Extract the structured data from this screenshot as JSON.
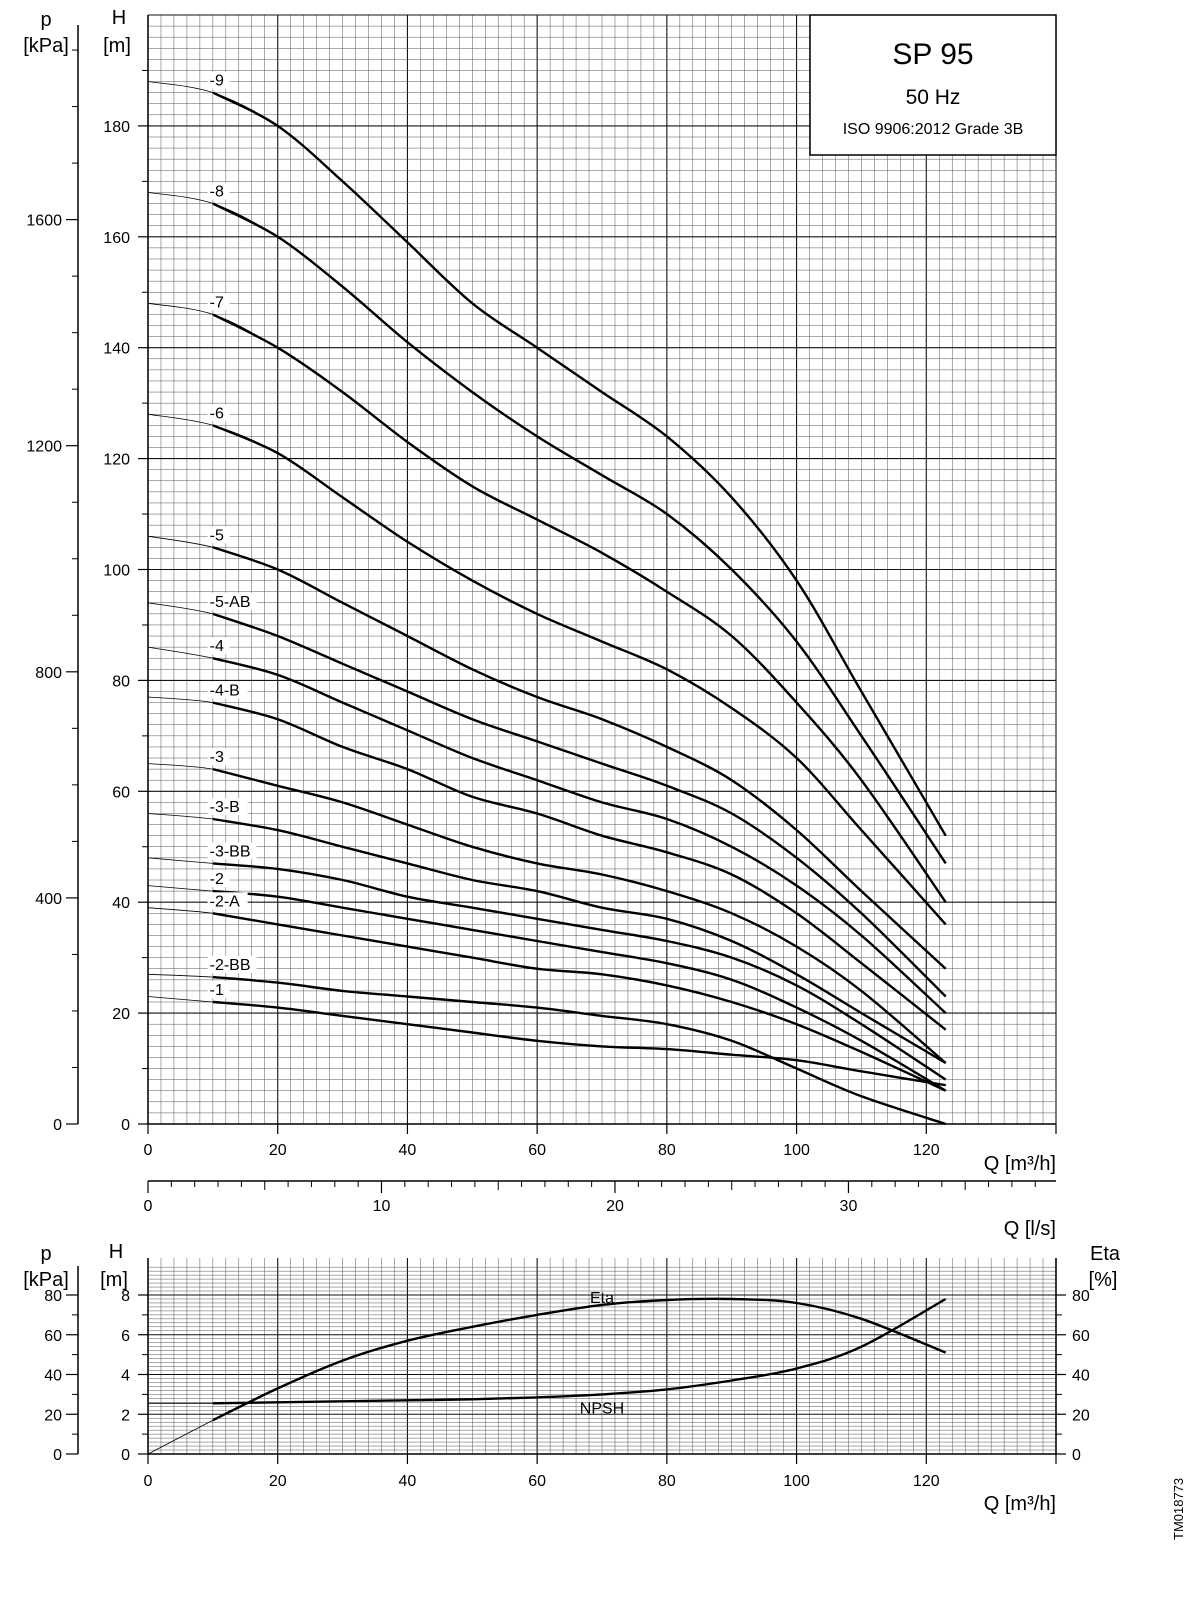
{
  "chart_data": [
    {
      "type": "line",
      "title": "SP 95",
      "subtitle": "50 Hz",
      "standard": "ISO 9906:2012 Grade 3B",
      "xlabel": "Q [m³/h]",
      "xlim": [
        0,
        140
      ],
      "x_ticks": [
        "0",
        "20",
        "40",
        "60",
        "80",
        "100",
        "120"
      ],
      "ylabel_head": "H",
      "ylabel_head_unit": "[m]",
      "ylim": [
        0,
        200
      ],
      "y_ticks": [
        "0",
        "20",
        "40",
        "60",
        "80",
        "100",
        "120",
        "140",
        "160",
        "180"
      ],
      "ylabel_pressure": "p",
      "ylabel_pressure_unit": "[kPa]",
      "p_ticks": [
        "0",
        "400",
        "800",
        "1200",
        "1600"
      ],
      "secondary_xlabel": "Q [l/s]",
      "secondary_x_ticks": [
        "0",
        "10",
        "20",
        "30"
      ],
      "grid": true,
      "series": [
        {
          "name": "-9",
          "x": [
            0,
            10,
            20,
            30,
            40,
            50,
            60,
            70,
            80,
            90,
            100,
            110,
            123
          ],
          "y": [
            188,
            186,
            180,
            170,
            159,
            148,
            140,
            132,
            124,
            113,
            98,
            78,
            52
          ]
        },
        {
          "name": "-8",
          "x": [
            0,
            10,
            20,
            30,
            40,
            50,
            60,
            70,
            80,
            90,
            100,
            110,
            123
          ],
          "y": [
            168,
            166,
            160,
            151,
            141,
            132,
            124,
            117,
            110,
            100,
            87,
            70,
            47
          ]
        },
        {
          "name": "-7",
          "x": [
            0,
            10,
            20,
            30,
            40,
            50,
            60,
            70,
            80,
            90,
            100,
            110,
            123
          ],
          "y": [
            148,
            146,
            140,
            132,
            123,
            115,
            109,
            103,
            96,
            88,
            76,
            62,
            40
          ]
        },
        {
          "name": "-6",
          "x": [
            0,
            10,
            20,
            30,
            40,
            50,
            60,
            70,
            80,
            90,
            100,
            110,
            123
          ],
          "y": [
            128,
            126,
            121,
            113,
            105,
            98,
            92,
            87,
            82,
            75,
            66,
            53,
            36
          ]
        },
        {
          "name": "-5",
          "x": [
            0,
            10,
            20,
            30,
            40,
            50,
            60,
            70,
            80,
            90,
            100,
            110,
            123
          ],
          "y": [
            106,
            104,
            100,
            94,
            88,
            82,
            77,
            73,
            68,
            62,
            53,
            42,
            28
          ]
        },
        {
          "name": "-5-AB",
          "x": [
            0,
            10,
            20,
            30,
            40,
            50,
            60,
            70,
            80,
            90,
            100,
            110,
            123
          ],
          "y": [
            94,
            92,
            88,
            83,
            78,
            73,
            69,
            65,
            61,
            56,
            48,
            38,
            23
          ]
        },
        {
          "name": "-4",
          "x": [
            0,
            10,
            20,
            30,
            40,
            50,
            60,
            70,
            80,
            90,
            100,
            110,
            123
          ],
          "y": [
            86,
            84,
            81,
            76,
            71,
            66,
            62,
            58,
            55,
            50,
            43,
            34,
            20
          ]
        },
        {
          "name": "-4-B",
          "x": [
            0,
            10,
            20,
            30,
            40,
            50,
            60,
            70,
            80,
            90,
            100,
            110,
            123
          ],
          "y": [
            77,
            76,
            73,
            68,
            64,
            59,
            56,
            52,
            49,
            45,
            38,
            29,
            17
          ]
        },
        {
          "name": "-3",
          "x": [
            0,
            10,
            20,
            30,
            40,
            50,
            60,
            70,
            80,
            90,
            100,
            110,
            123
          ],
          "y": [
            65,
            64,
            61,
            58,
            54,
            50,
            47,
            45,
            42,
            38,
            32,
            24,
            11
          ]
        },
        {
          "name": "-3-B",
          "x": [
            0,
            10,
            20,
            30,
            40,
            50,
            60,
            70,
            80,
            90,
            100,
            110,
            123
          ],
          "y": [
            56,
            55,
            53,
            50,
            47,
            44,
            42,
            39,
            37,
            33,
            27,
            20,
            11
          ]
        },
        {
          "name": "-3-BB",
          "x": [
            0,
            10,
            20,
            30,
            40,
            50,
            60,
            70,
            80,
            90,
            100,
            110,
            123
          ],
          "y": [
            48,
            47,
            46,
            44,
            41,
            39,
            37,
            35,
            33,
            30,
            25,
            18,
            8
          ]
        },
        {
          "name": "-2",
          "x": [
            0,
            10,
            20,
            30,
            40,
            50,
            60,
            70,
            80,
            90,
            100,
            110,
            123
          ],
          "y": [
            43,
            42,
            41,
            39,
            37,
            35,
            33,
            31,
            29,
            26,
            21,
            15,
            6
          ]
        },
        {
          "name": "-2-A",
          "x": [
            0,
            10,
            20,
            30,
            40,
            50,
            60,
            70,
            80,
            90,
            100,
            110,
            123
          ],
          "y": [
            39,
            38,
            36,
            34,
            32,
            30,
            28,
            27,
            25,
            22,
            18,
            13,
            6
          ]
        },
        {
          "name": "-2-BB",
          "x": [
            0,
            10,
            20,
            30,
            40,
            50,
            60,
            70,
            80,
            90,
            100,
            110,
            123
          ],
          "y": [
            27,
            26.5,
            25.5,
            24,
            23,
            22,
            21,
            19.5,
            18,
            15,
            10,
            5,
            0
          ]
        },
        {
          "name": "-1",
          "x": [
            0,
            10,
            20,
            30,
            40,
            50,
            60,
            70,
            80,
            90,
            100,
            110,
            123
          ],
          "y": [
            23,
            22,
            21,
            19.5,
            18,
            16.5,
            15,
            14,
            13.5,
            12.5,
            11.5,
            9.5,
            7
          ]
        }
      ]
    },
    {
      "type": "line",
      "xlabel": "Q [m³/h]",
      "xlim": [
        0,
        140
      ],
      "x_ticks": [
        "0",
        "20",
        "40",
        "60",
        "80",
        "100",
        "120"
      ],
      "ylabel_head": "H",
      "ylabel_head_unit": "[m]",
      "ylim": [
        0,
        8
      ],
      "y_ticks": [
        "0",
        "2",
        "4",
        "6",
        "8"
      ],
      "ylabel_pressure": "p",
      "ylabel_pressure_unit": "[kPa]",
      "p_ticks": [
        "0",
        "20",
        "40",
        "60",
        "80"
      ],
      "ylabel_eta": "Eta",
      "ylabel_eta_unit": "[%]",
      "eta_ticks": [
        "0",
        "20",
        "40",
        "60",
        "80"
      ],
      "grid": true,
      "series": [
        {
          "name": "Eta",
          "x": [
            10,
            20,
            30,
            40,
            50,
            60,
            70,
            80,
            90,
            100,
            110,
            123
          ],
          "y": [
            17,
            33,
            47,
            57,
            64,
            70,
            75,
            77.5,
            78,
            76,
            68,
            51
          ]
        },
        {
          "name": "NPSH",
          "x": [
            10,
            20,
            30,
            40,
            50,
            60,
            70,
            80,
            90,
            100,
            110,
            123
          ],
          "y": [
            2.55,
            2.6,
            2.65,
            2.7,
            2.75,
            2.85,
            3.0,
            3.25,
            3.7,
            4.3,
            5.4,
            7.8
          ]
        }
      ]
    }
  ],
  "figure_id": "TM018773"
}
